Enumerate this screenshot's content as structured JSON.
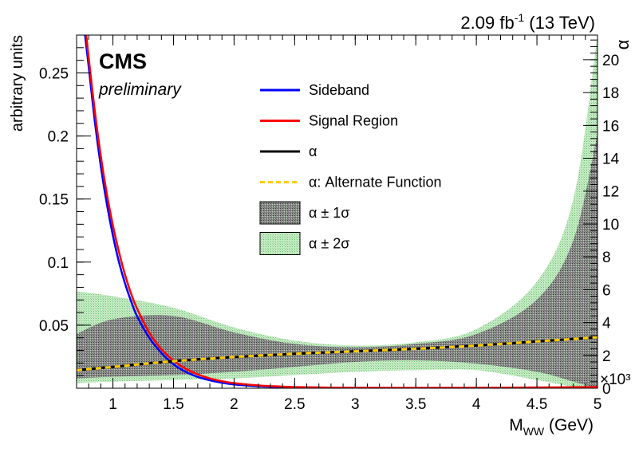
{
  "chart_data": {
    "type": "line",
    "lumi_label": {
      "prefix": "2.09 fb",
      "exponent": "-1",
      "suffix": " (13 TeV)"
    },
    "cms_label": "CMS",
    "preliminary_label": "preliminary",
    "xlabel": {
      "main": "M",
      "sub": "WW",
      "unit": " (GeV)"
    },
    "ylabel": "arbitrary units",
    "y2label": "α",
    "y2_multiplier": "×10³",
    "xlim": [
      0.7,
      5.0
    ],
    "ylim": [
      0,
      0.28
    ],
    "y2lim": [
      0,
      21.5
    ],
    "x_ticks": [
      1,
      1.5,
      2,
      2.5,
      3,
      3.5,
      4,
      4.5,
      5
    ],
    "x_tick_labels": [
      "1",
      "1.5",
      "2",
      "2.5",
      "3",
      "3.5",
      "4",
      "4.5",
      "5"
    ],
    "y_ticks": [
      0.05,
      0.1,
      0.15,
      0.2,
      0.25
    ],
    "y_tick_labels": [
      "0.05",
      "0.1",
      "0.15",
      "0.2",
      "0.25"
    ],
    "y2_ticks": [
      0,
      2,
      4,
      6,
      8,
      10,
      12,
      14,
      16,
      18,
      20
    ],
    "y2_tick_labels": [
      "0",
      "2",
      "4",
      "6",
      "8",
      "10",
      "12",
      "14",
      "16",
      "18",
      "20"
    ],
    "legend": {
      "placement": "top-center",
      "entries": [
        {
          "label": "Sideband",
          "kind": "line",
          "color": "#0000ff"
        },
        {
          "label": "Signal Region",
          "kind": "line",
          "color": "#ff0000"
        },
        {
          "label": "α",
          "kind": "line",
          "color": "#000000"
        },
        {
          "label": "α: Alternate Function",
          "kind": "dashed",
          "color": "#ffcc00"
        },
        {
          "label": "α ± 1σ",
          "kind": "fill",
          "color": "#808080"
        },
        {
          "label": "α ± 2σ",
          "kind": "fill",
          "color": "#b9e6b9"
        }
      ]
    },
    "series": [
      {
        "name": "Sideband",
        "axis": "left",
        "color": "#0000ff",
        "x": [
          0.77,
          0.8,
          0.85,
          0.9,
          0.95,
          1.0,
          1.05,
          1.1,
          1.15,
          1.2,
          1.3,
          1.4,
          1.5,
          1.6,
          1.7,
          1.8,
          1.9,
          2.0,
          2.2,
          2.4,
          2.6,
          2.8,
          3.0,
          3.5,
          4.0,
          4.5,
          5.0
        ],
        "y": [
          0.28,
          0.255,
          0.212,
          0.176,
          0.146,
          0.121,
          0.1,
          0.083,
          0.069,
          0.057,
          0.04,
          0.028,
          0.019,
          0.013,
          0.009,
          0.0063,
          0.0044,
          0.003,
          0.0016,
          0.0009,
          0.0005,
          0.0003,
          0.0002,
          0.0001,
          0.0001,
          0.0001,
          0.0001
        ]
      },
      {
        "name": "Signal Region",
        "axis": "left",
        "color": "#ff0000",
        "x": [
          0.78,
          0.8,
          0.85,
          0.9,
          0.95,
          1.0,
          1.05,
          1.1,
          1.15,
          1.2,
          1.3,
          1.4,
          1.5,
          1.6,
          1.7,
          1.8,
          1.9,
          2.0,
          2.2,
          2.4,
          2.6,
          2.8,
          3.0,
          3.5,
          4.0,
          4.5,
          5.0
        ],
        "y": [
          0.28,
          0.262,
          0.22,
          0.184,
          0.154,
          0.129,
          0.108,
          0.09,
          0.075,
          0.063,
          0.044,
          0.031,
          0.022,
          0.0155,
          0.011,
          0.0078,
          0.0056,
          0.004,
          0.0022,
          0.0013,
          0.0008,
          0.0005,
          0.0004,
          0.0003,
          0.0004,
          0.0006,
          0.001
        ]
      },
      {
        "name": "α",
        "axis": "right",
        "color": "#000000",
        "x": [
          0.7,
          1.0,
          1.5,
          2.0,
          2.5,
          3.0,
          3.5,
          4.0,
          4.5,
          5.0
        ],
        "y": [
          1.1,
          1.3,
          1.65,
          1.9,
          2.1,
          2.25,
          2.4,
          2.6,
          2.85,
          3.1
        ]
      },
      {
        "name": "α: Alternate Function",
        "axis": "right",
        "color": "#ffcc00",
        "x": [
          0.7,
          1.0,
          1.5,
          2.0,
          2.5,
          3.0,
          3.5,
          4.0,
          4.5,
          5.0
        ],
        "y": [
          1.1,
          1.3,
          1.65,
          1.9,
          2.1,
          2.25,
          2.4,
          2.6,
          2.85,
          3.1
        ]
      }
    ],
    "bands": [
      {
        "name": "α ± 2σ",
        "axis": "right",
        "color": "#b9e6b9",
        "x": [
          0.7,
          1.0,
          1.5,
          2.0,
          2.5,
          3.0,
          3.5,
          4.0,
          4.5,
          4.8,
          5.0
        ],
        "upper": [
          5.9,
          5.6,
          4.9,
          3.7,
          2.9,
          2.6,
          2.8,
          3.6,
          6.5,
          11.5,
          21.5
        ],
        "lower": [
          0.3,
          0.4,
          0.5,
          0.6,
          0.8,
          1.0,
          1.1,
          1.1,
          0.5,
          0.1,
          0
        ]
      },
      {
        "name": "α ± 1σ",
        "axis": "right",
        "color": "#808080",
        "x": [
          0.7,
          1.0,
          1.5,
          2.0,
          2.5,
          3.0,
          3.5,
          4.0,
          4.5,
          4.8,
          5.0
        ],
        "upper": [
          3.3,
          4.2,
          4.4,
          3.4,
          2.7,
          2.5,
          2.7,
          3.3,
          5.4,
          9.0,
          15.5
        ],
        "lower": [
          0.6,
          0.7,
          0.8,
          1.0,
          1.3,
          1.6,
          1.7,
          1.5,
          1.0,
          0.4,
          0
        ]
      }
    ]
  }
}
